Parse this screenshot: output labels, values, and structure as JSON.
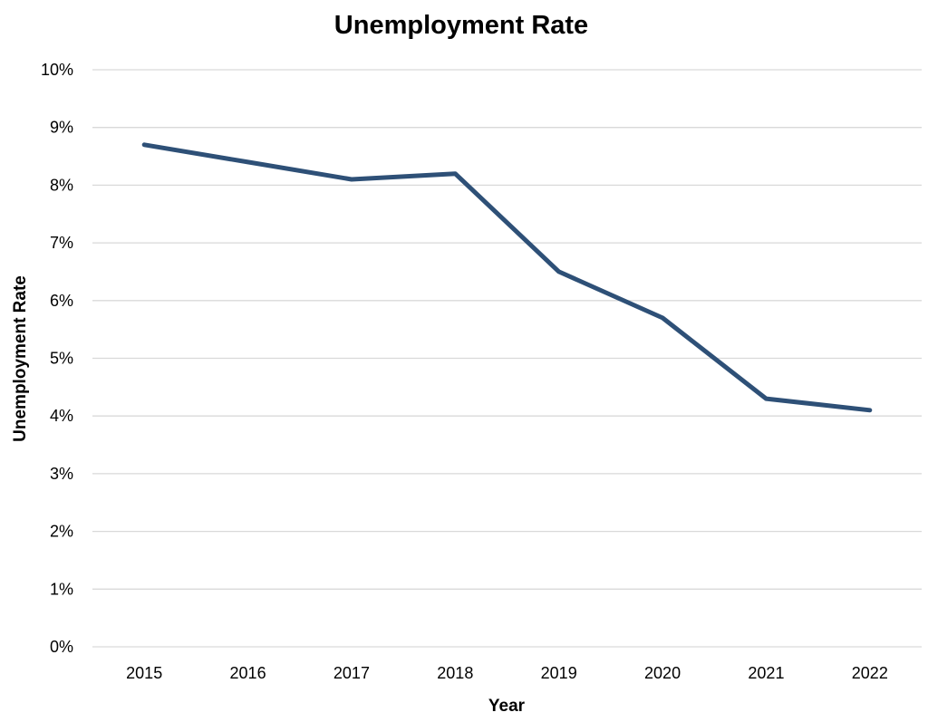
{
  "chart_data": {
    "type": "line",
    "title": "Unemployment Rate",
    "xlabel": "Year",
    "ylabel": "Unemployment Rate",
    "categories": [
      "2015",
      "2016",
      "2017",
      "2018",
      "2019",
      "2020",
      "2021",
      "2022"
    ],
    "series": [
      {
        "values": [
          8.7,
          8.4,
          8.1,
          8.2,
          6.5,
          5.7,
          4.3,
          4.1
        ],
        "color": "#2e5077"
      }
    ],
    "ylim": [
      0,
      10
    ],
    "yticks": [
      0,
      1,
      2,
      3,
      4,
      5,
      6,
      7,
      8,
      9,
      10
    ],
    "ytick_labels": [
      "0%",
      "1%",
      "2%",
      "3%",
      "4%",
      "5%",
      "6%",
      "7%",
      "8%",
      "9%",
      "10%"
    ],
    "grid": true,
    "legend": false
  }
}
